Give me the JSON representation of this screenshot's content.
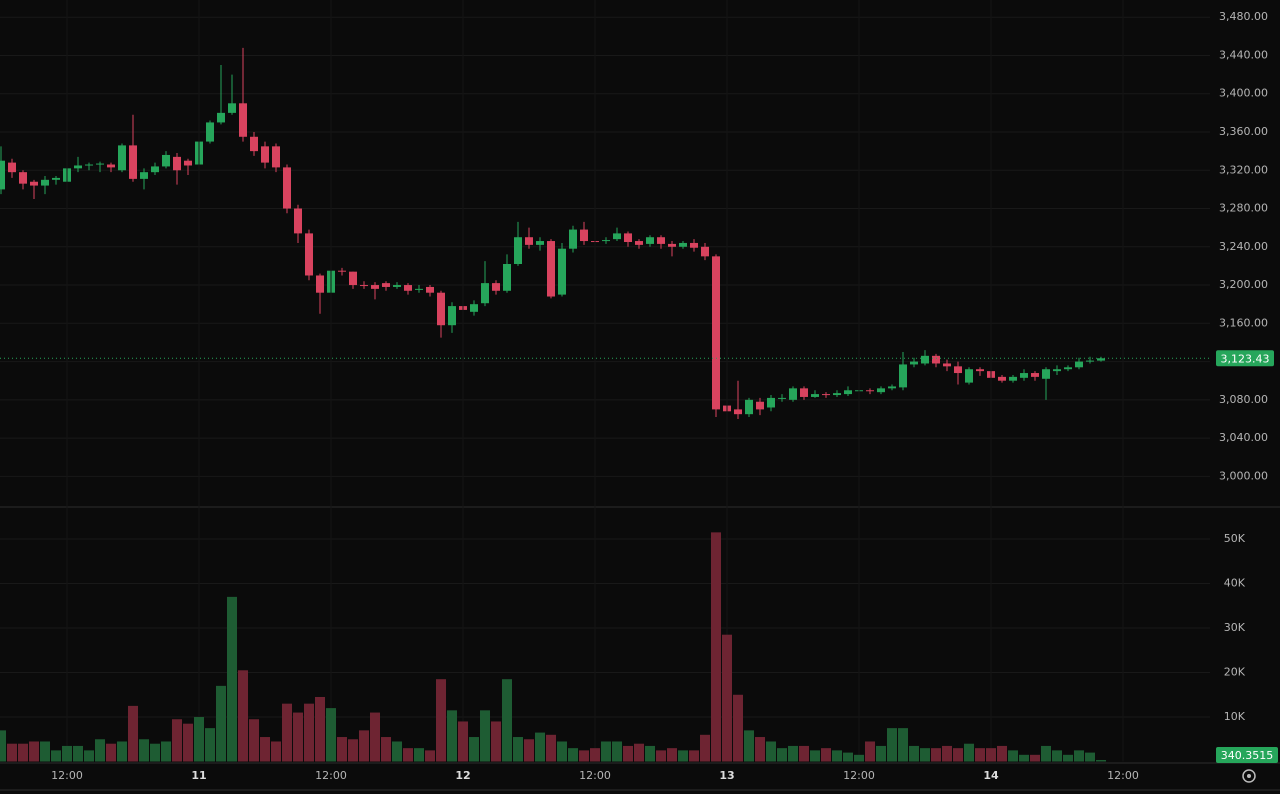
{
  "chart_data": [
    {
      "type": "candlestick",
      "open": [
        3300,
        3328,
        3318,
        3308,
        3304,
        3310,
        3308,
        3322,
        3325,
        3326,
        3326,
        3320,
        3346,
        3311,
        3318,
        3324,
        3334,
        3330,
        3326,
        3350,
        3370,
        3380,
        3390,
        3355,
        3345,
        3345,
        3323,
        3280,
        3254,
        3210,
        3192,
        3215,
        3214,
        3200,
        3200,
        3202,
        3198,
        3200,
        3195,
        3198,
        3192,
        3158,
        3178,
        3172,
        3181,
        3202,
        3194,
        3222,
        3250,
        3242,
        3246,
        3190,
        3238,
        3258,
        3246,
        3246,
        3248,
        3254,
        3246,
        3243,
        3250,
        3243,
        3240,
        3244,
        3240,
        3230,
        3074,
        3070,
        3065,
        3078,
        3072,
        3082,
        3080,
        3092,
        3083,
        3086,
        3085,
        3086,
        3089,
        3090,
        3088,
        3092,
        3093,
        3117,
        3118,
        3126,
        3118,
        3115,
        3098,
        3112,
        3110,
        3104,
        3100,
        3103,
        3108,
        3102,
        3110,
        3112,
        3114,
        3120,
        3121
      ],
      "high": [
        3345,
        3332,
        3320,
        3310,
        3314,
        3314,
        3330,
        3334,
        3328,
        3329,
        3328,
        3348,
        3378,
        3322,
        3328,
        3340,
        3338,
        3332,
        3352,
        3372,
        3430,
        3420,
        3448,
        3360,
        3350,
        3348,
        3326,
        3284,
        3258,
        3212,
        3216,
        3218,
        3214,
        3204,
        3203,
        3204,
        3203,
        3202,
        3200,
        3200,
        3194,
        3182,
        3200,
        3184,
        3225,
        3205,
        3232,
        3266,
        3260,
        3250,
        3248,
        3244,
        3262,
        3266,
        3250,
        3250,
        3260,
        3256,
        3248,
        3252,
        3252,
        3246,
        3246,
        3248,
        3244,
        3232,
        3100,
        3100,
        3082,
        3082,
        3085,
        3086,
        3094,
        3094,
        3090,
        3088,
        3090,
        3094,
        3092,
        3092,
        3094,
        3096,
        3130,
        3124,
        3132,
        3128,
        3122,
        3120,
        3114,
        3114,
        3112,
        3106,
        3106,
        3112,
        3110,
        3114,
        3116,
        3116,
        3124,
        3125,
        3125
      ],
      "low": [
        3295,
        3312,
        3300,
        3290,
        3295,
        3305,
        3305,
        3318,
        3320,
        3318,
        3318,
        3318,
        3308,
        3300,
        3315,
        3322,
        3305,
        3315,
        3322,
        3348,
        3368,
        3378,
        3350,
        3335,
        3322,
        3318,
        3275,
        3244,
        3205,
        3170,
        3188,
        3210,
        3196,
        3196,
        3185,
        3194,
        3196,
        3190,
        3192,
        3188,
        3145,
        3150,
        3170,
        3168,
        3178,
        3190,
        3192,
        3220,
        3238,
        3236,
        3186,
        3188,
        3234,
        3242,
        3241,
        3243,
        3246,
        3240,
        3238,
        3240,
        3238,
        3230,
        3238,
        3235,
        3226,
        3062,
        3040,
        3060,
        3062,
        3064,
        3068,
        3078,
        3078,
        3080,
        3082,
        3082,
        3083,
        3084,
        3086,
        3086,
        3086,
        3090,
        3090,
        3114,
        3116,
        3114,
        3110,
        3096,
        3096,
        3105,
        3100,
        3098,
        3098,
        3100,
        3100,
        3080,
        3106,
        3110,
        3112,
        3118,
        3120
      ],
      "close": [
        3330,
        3318,
        3306,
        3304,
        3310,
        3312,
        3322,
        3325,
        3326,
        3327,
        3323,
        3346,
        3311,
        3318,
        3324,
        3336,
        3320,
        3325,
        3350,
        3370,
        3380,
        3390,
        3355,
        3340,
        3328,
        3323,
        3280,
        3254,
        3210,
        3192,
        3215,
        3214,
        3200,
        3199,
        3196,
        3198,
        3200,
        3194,
        3196,
        3192,
        3158,
        3178,
        3174,
        3180,
        3202,
        3194,
        3222,
        3250,
        3242,
        3246,
        3188,
        3238,
        3258,
        3246,
        3245,
        3247,
        3254,
        3245,
        3242,
        3250,
        3243,
        3240,
        3244,
        3239,
        3230,
        3070,
        3068,
        3065,
        3080,
        3070,
        3082,
        3082,
        3092,
        3083,
        3086,
        3085,
        3087,
        3090,
        3090,
        3089,
        3092,
        3094,
        3117,
        3120,
        3126,
        3118,
        3115,
        3108,
        3112,
        3110,
        3103,
        3100,
        3104,
        3108,
        3104,
        3112,
        3112,
        3114,
        3120,
        3121,
        3123.43
      ],
      "last_label": "3,123.43",
      "up_color": "#26a65b",
      "down_color": "#d9435f",
      "grid": true,
      "ylim": [
        2969,
        3498
      ],
      "yticks": [
        {
          "value": 3000,
          "label": "3,000.00"
        },
        {
          "value": 3040,
          "label": "3,040.00"
        },
        {
          "value": 3080,
          "label": "3,080.00"
        },
        {
          "value": 3120,
          "label": "3,120.00"
        },
        {
          "value": 3160,
          "label": "3,160.00"
        },
        {
          "value": 3200,
          "label": "3,200.00"
        },
        {
          "value": 3240,
          "label": "3,240.00"
        },
        {
          "value": 3280,
          "label": "3,280.00"
        },
        {
          "value": 3320,
          "label": "3,320.00"
        },
        {
          "value": 3360,
          "label": "3,360.00"
        },
        {
          "value": 3400,
          "label": "3,400.00"
        },
        {
          "value": 3440,
          "label": "3,440.00"
        },
        {
          "value": 3480,
          "label": "3,480.00"
        }
      ]
    },
    {
      "type": "bar",
      "values": [
        7000,
        4000,
        4000,
        4500,
        4500,
        2500,
        3500,
        3500,
        2500,
        5000,
        4000,
        4500,
        12500,
        5000,
        4000,
        4500,
        9500,
        8500,
        10000,
        7500,
        17000,
        37000,
        20500,
        9500,
        5500,
        4500,
        13000,
        11000,
        13000,
        14500,
        12000,
        5500,
        5000,
        7000,
        11000,
        5500,
        4500,
        3000,
        3000,
        2500,
        18500,
        11500,
        9000,
        5500,
        11500,
        9000,
        18500,
        5500,
        5000,
        6500,
        6000,
        4500,
        3000,
        2500,
        3000,
        4500,
        4500,
        3500,
        4000,
        3500,
        2500,
        3000,
        2500,
        2500,
        6000,
        51500,
        28500,
        15000,
        7000,
        5500,
        4500,
        3000,
        3500,
        3500,
        2500,
        3000,
        2500,
        2000,
        1500,
        4500,
        3500,
        7500,
        7500,
        3500,
        3000,
        3000,
        3500,
        3000,
        4000,
        3000,
        3000,
        3500,
        2500,
        1500,
        1500,
        3500,
        2500,
        1500,
        2500,
        2000,
        340.3515
      ],
      "last_label": "340.3515",
      "up_color": "#1e5c33",
      "down_color": "#6e2432",
      "grid": true,
      "ylim": [
        0,
        57200
      ],
      "yticks": [
        {
          "value": 10000,
          "label": "10K"
        },
        {
          "value": 20000,
          "label": "20K"
        },
        {
          "value": 30000,
          "label": "30K"
        },
        {
          "value": 40000,
          "label": "40K"
        },
        {
          "value": 50000,
          "label": "50K"
        }
      ],
      "xticks": [
        {
          "value": 6,
          "label": "12:00"
        },
        {
          "value": 18,
          "label": "11"
        },
        {
          "value": 30,
          "label": "12:00"
        },
        {
          "value": 42,
          "label": "12"
        },
        {
          "value": 54,
          "label": "12:00"
        },
        {
          "value": 66,
          "label": "13"
        },
        {
          "value": 78,
          "label": "12:00"
        },
        {
          "value": 90,
          "label": "14"
        },
        {
          "value": 102,
          "label": "12:00"
        }
      ]
    }
  ]
}
